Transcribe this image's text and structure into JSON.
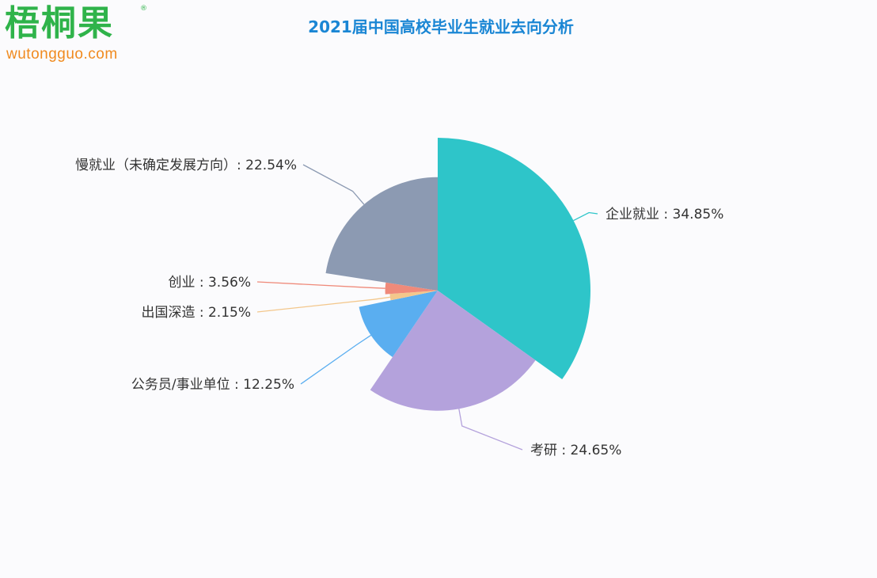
{
  "logo": {
    "cn": "梧桐果",
    "en": "wutongguo.com",
    "reg": "®"
  },
  "title": "2021届中国高校毕业生就业去向分析",
  "chart_data": {
    "type": "pie",
    "subtype": "rose",
    "title": "2021届中国高校毕业生就业去向分析",
    "slices": [
      {
        "label": "企业就业",
        "value": 34.85,
        "display": "企业就业 : 34.85%",
        "color": "#2ec5c9"
      },
      {
        "label": "考研",
        "value": 24.65,
        "display": "考研 : 24.65%",
        "color": "#b4a2dc"
      },
      {
        "label": "公务员/事业单位",
        "value": 12.25,
        "display": "公务员/事业单位 : 12.25%",
        "color": "#5aaef0"
      },
      {
        "label": "出国深造",
        "value": 2.15,
        "display": "出国深造 : 2.15%",
        "color": "#f3c78c"
      },
      {
        "label": "创业",
        "value": 3.56,
        "display": "创业 : 3.56%",
        "color": "#ef8a7a"
      },
      {
        "label": "慢就业（未确定发展方向）",
        "value": 22.54,
        "display": "慢就业（未确定发展方向）: 22.54%",
        "color": "#8c9ab2"
      }
    ]
  }
}
